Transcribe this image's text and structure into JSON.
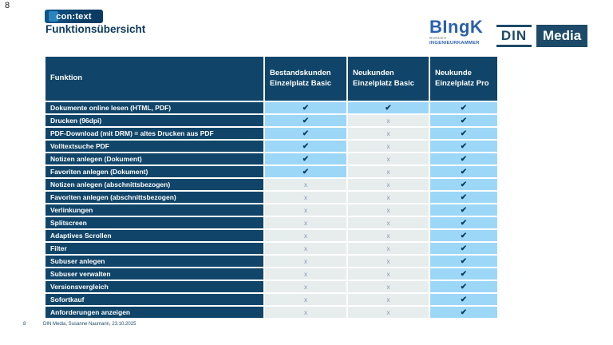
{
  "slide": {
    "top_left_number": "8",
    "title": "Funktionsübersicht"
  },
  "logos": {
    "context_label": "con:text",
    "bingk": {
      "wordmark": "BIngK",
      "line1": "BUNDES",
      "line2": "INGENIEURKAMMER"
    },
    "din_media": {
      "din": "DIN",
      "media": "Media"
    }
  },
  "table": {
    "headers": [
      "Funktion",
      "Bestandskunden\nEinzelplatz Basic",
      "Neukunden\nEinzelplatz Basic",
      "Neukunde\nEinzelplatz Pro"
    ],
    "check_symbol": "✔",
    "cross_symbol": "x",
    "rows": [
      {
        "label": "Dokumente online lesen (HTML, PDF)",
        "values": [
          true,
          true,
          true
        ]
      },
      {
        "label": "Drucken (96dpi)",
        "values": [
          true,
          false,
          true
        ]
      },
      {
        "label": "PDF-Download (mit DRM) = altes Drucken aus PDF",
        "values": [
          true,
          false,
          true
        ]
      },
      {
        "label": "Volltextsuche PDF",
        "values": [
          true,
          false,
          true
        ]
      },
      {
        "label": "Notizen anlegen (Dokument)",
        "values": [
          true,
          false,
          true
        ]
      },
      {
        "label": "Favoriten anlegen (Dokument)",
        "values": [
          true,
          false,
          true
        ]
      },
      {
        "label": "Notizen anlegen (abschnittsbezogen)",
        "values": [
          false,
          false,
          true
        ]
      },
      {
        "label": "Favoriten anlegen (abschnittsbezogen)",
        "values": [
          false,
          false,
          true
        ]
      },
      {
        "label": "Verlinkungen",
        "values": [
          false,
          false,
          true
        ]
      },
      {
        "label": "Splitscreen",
        "values": [
          false,
          false,
          true
        ]
      },
      {
        "label": "Adaptives Scrollen",
        "values": [
          false,
          false,
          true
        ]
      },
      {
        "label": "Filter",
        "values": [
          false,
          false,
          true
        ]
      },
      {
        "label": "Subuser anlegen",
        "values": [
          false,
          false,
          true
        ]
      },
      {
        "label": "Subuser verwalten",
        "values": [
          false,
          false,
          true
        ]
      },
      {
        "label": "Versionsvergleich",
        "values": [
          false,
          false,
          true
        ]
      },
      {
        "label": "Sofortkauf",
        "values": [
          false,
          false,
          true
        ]
      },
      {
        "label": "Anforderungen anzeigen",
        "values": [
          false,
          false,
          true
        ]
      }
    ]
  },
  "footer": {
    "slide_number": "8",
    "text": "DIN Media, Susanne Naumann, 23.10.2025"
  },
  "colors": {
    "navy": "#104569",
    "check_cell": "#9dd7f8",
    "cross_cell": "#e7eced",
    "check_glyph": "#0d3c5e",
    "cross_glyph": "#7f9ab0",
    "accent_blue": "#2b5fae",
    "din_navy": "#1d4a68"
  }
}
